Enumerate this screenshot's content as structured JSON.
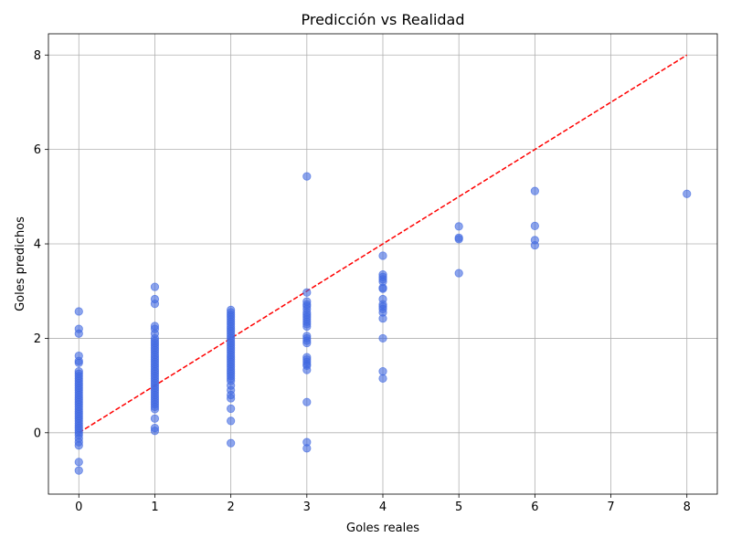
{
  "chart_data": {
    "type": "scatter",
    "title": "Predicción vs Realidad",
    "xlabel": "Goles reales",
    "ylabel": "Goles predichos",
    "xlim": [
      -0.4,
      8.4
    ],
    "ylim": [
      -1.3,
      8.45
    ],
    "xticks": [
      0,
      1,
      2,
      3,
      4,
      5,
      6,
      7,
      8
    ],
    "yticks": [
      0,
      2,
      4,
      6,
      8
    ],
    "grid": true,
    "colors": {
      "points": "#4169e1",
      "reference_line": "#ff0000"
    },
    "reference_line": {
      "style": "dashed",
      "x": [
        0,
        8
      ],
      "y": [
        0,
        8
      ]
    },
    "series": [
      {
        "points": [
          [
            0,
            2.57
          ],
          [
            0,
            2.2
          ],
          [
            0,
            2.1
          ],
          [
            0,
            1.63
          ],
          [
            0,
            1.52
          ],
          [
            0,
            1.48
          ],
          [
            0,
            1.3
          ],
          [
            0,
            1.25
          ],
          [
            0,
            1.2
          ],
          [
            0,
            1.15
          ],
          [
            0,
            1.1
          ],
          [
            0,
            1.05
          ],
          [
            0,
            1.0
          ],
          [
            0,
            0.95
          ],
          [
            0,
            0.9
          ],
          [
            0,
            0.85
          ],
          [
            0,
            0.8
          ],
          [
            0,
            0.75
          ],
          [
            0,
            0.7
          ],
          [
            0,
            0.65
          ],
          [
            0,
            0.6
          ],
          [
            0,
            0.55
          ],
          [
            0,
            0.5
          ],
          [
            0,
            0.45
          ],
          [
            0,
            0.4
          ],
          [
            0,
            0.35
          ],
          [
            0,
            0.3
          ],
          [
            0,
            0.25
          ],
          [
            0,
            0.2
          ],
          [
            0,
            0.15
          ],
          [
            0,
            0.1
          ],
          [
            0,
            0.05
          ],
          [
            0,
            0.0
          ],
          [
            0,
            -0.05
          ],
          [
            0,
            -0.12
          ],
          [
            0,
            -0.2
          ],
          [
            0,
            -0.27
          ],
          [
            0,
            -0.62
          ],
          [
            0,
            -0.8
          ],
          [
            1,
            3.09
          ],
          [
            1,
            2.83
          ],
          [
            1,
            2.73
          ],
          [
            1,
            2.26
          ],
          [
            1,
            2.2
          ],
          [
            1,
            2.1
          ],
          [
            1,
            2.0
          ],
          [
            1,
            1.95
          ],
          [
            1,
            1.9
          ],
          [
            1,
            1.85
          ],
          [
            1,
            1.8
          ],
          [
            1,
            1.75
          ],
          [
            1,
            1.7
          ],
          [
            1,
            1.65
          ],
          [
            1,
            1.6
          ],
          [
            1,
            1.55
          ],
          [
            1,
            1.5
          ],
          [
            1,
            1.45
          ],
          [
            1,
            1.4
          ],
          [
            1,
            1.35
          ],
          [
            1,
            1.3
          ],
          [
            1,
            1.25
          ],
          [
            1,
            1.2
          ],
          [
            1,
            1.15
          ],
          [
            1,
            1.1
          ],
          [
            1,
            1.05
          ],
          [
            1,
            1.0
          ],
          [
            1,
            0.95
          ],
          [
            1,
            0.9
          ],
          [
            1,
            0.85
          ],
          [
            1,
            0.8
          ],
          [
            1,
            0.75
          ],
          [
            1,
            0.7
          ],
          [
            1,
            0.65
          ],
          [
            1,
            0.6
          ],
          [
            1,
            0.55
          ],
          [
            1,
            0.5
          ],
          [
            1,
            0.3
          ],
          [
            1,
            0.1
          ],
          [
            1,
            0.04
          ],
          [
            2,
            2.6
          ],
          [
            2,
            2.55
          ],
          [
            2,
            2.5
          ],
          [
            2,
            2.45
          ],
          [
            2,
            2.4
          ],
          [
            2,
            2.35
          ],
          [
            2,
            2.3
          ],
          [
            2,
            2.25
          ],
          [
            2,
            2.2
          ],
          [
            2,
            2.15
          ],
          [
            2,
            2.1
          ],
          [
            2,
            2.05
          ],
          [
            2,
            2.0
          ],
          [
            2,
            1.95
          ],
          [
            2,
            1.9
          ],
          [
            2,
            1.85
          ],
          [
            2,
            1.8
          ],
          [
            2,
            1.75
          ],
          [
            2,
            1.7
          ],
          [
            2,
            1.65
          ],
          [
            2,
            1.6
          ],
          [
            2,
            1.55
          ],
          [
            2,
            1.5
          ],
          [
            2,
            1.45
          ],
          [
            2,
            1.4
          ],
          [
            2,
            1.35
          ],
          [
            2,
            1.3
          ],
          [
            2,
            1.25
          ],
          [
            2,
            1.2
          ],
          [
            2,
            1.15
          ],
          [
            2,
            1.1
          ],
          [
            2,
            1.0
          ],
          [
            2,
            0.9
          ],
          [
            2,
            0.8
          ],
          [
            2,
            0.73
          ],
          [
            2,
            0.51
          ],
          [
            2,
            0.25
          ],
          [
            2,
            -0.22
          ],
          [
            3,
            5.43
          ],
          [
            3,
            2.97
          ],
          [
            3,
            2.78
          ],
          [
            3,
            2.72
          ],
          [
            3,
            2.68
          ],
          [
            3,
            2.62
          ],
          [
            3,
            2.55
          ],
          [
            3,
            2.5
          ],
          [
            3,
            2.45
          ],
          [
            3,
            2.4
          ],
          [
            3,
            2.35
          ],
          [
            3,
            2.3
          ],
          [
            3,
            2.25
          ],
          [
            3,
            2.05
          ],
          [
            3,
            2.0
          ],
          [
            3,
            1.95
          ],
          [
            3,
            1.9
          ],
          [
            3,
            1.6
          ],
          [
            3,
            1.55
          ],
          [
            3,
            1.5
          ],
          [
            3,
            1.45
          ],
          [
            3,
            1.42
          ],
          [
            3,
            1.33
          ],
          [
            3,
            0.65
          ],
          [
            3,
            -0.2
          ],
          [
            3,
            -0.33
          ],
          [
            4,
            3.75
          ],
          [
            4,
            3.35
          ],
          [
            4,
            3.3
          ],
          [
            4,
            3.25
          ],
          [
            4,
            3.2
          ],
          [
            4,
            3.07
          ],
          [
            4,
            3.05
          ],
          [
            4,
            2.83
          ],
          [
            4,
            2.72
          ],
          [
            4,
            2.67
          ],
          [
            4,
            2.62
          ],
          [
            4,
            2.55
          ],
          [
            4,
            2.42
          ],
          [
            4,
            2.0
          ],
          [
            4,
            1.3
          ],
          [
            4,
            1.15
          ],
          [
            5,
            4.37
          ],
          [
            5,
            4.13
          ],
          [
            5,
            4.1
          ],
          [
            5,
            3.38
          ],
          [
            6,
            5.12
          ],
          [
            6,
            4.38
          ],
          [
            6,
            4.08
          ],
          [
            6,
            3.97
          ],
          [
            8,
            5.06
          ]
        ]
      }
    ]
  }
}
